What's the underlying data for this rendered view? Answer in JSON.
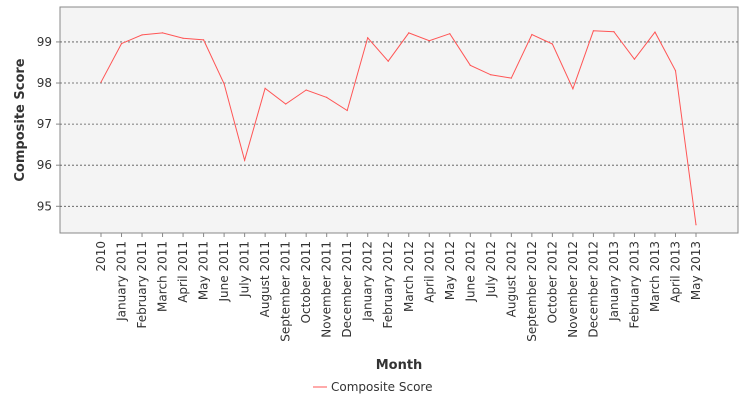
{
  "chart_data": {
    "type": "line",
    "title": "",
    "xlabel": "Month",
    "ylabel": "Composite Score",
    "ylim": [
      94.35,
      99.85
    ],
    "yticks": [
      95,
      96,
      97,
      98,
      99
    ],
    "grid": true,
    "legend": "bottom-center",
    "categories": [
      "2010",
      "January 2011",
      "February 2011",
      "March 2011",
      "April 2011",
      "May 2011",
      "June 2011",
      "July 2011",
      "August 2011",
      "September 2011",
      "October 2011",
      "November 2011",
      "December 2011",
      "January 2012",
      "February 2012",
      "March 2012",
      "April 2012",
      "May 2012",
      "June 2012",
      "July 2012",
      "August 2012",
      "September 2012",
      "October 2012",
      "November 2012",
      "December 2012",
      "January 2013",
      "February 2013",
      "March 2013",
      "April 2013",
      "May 2013"
    ],
    "series": [
      {
        "name": "Composite Score",
        "color": "#ff5555",
        "values": [
          98.02,
          98.96,
          99.17,
          99.22,
          99.09,
          99.05,
          97.98,
          96.12,
          97.87,
          97.49,
          97.83,
          97.65,
          97.33,
          99.1,
          98.53,
          99.22,
          99.03,
          99.2,
          98.43,
          98.2,
          98.12,
          99.18,
          98.95,
          97.86,
          99.27,
          99.25,
          98.58,
          99.24,
          98.3,
          94.55
        ]
      }
    ]
  }
}
